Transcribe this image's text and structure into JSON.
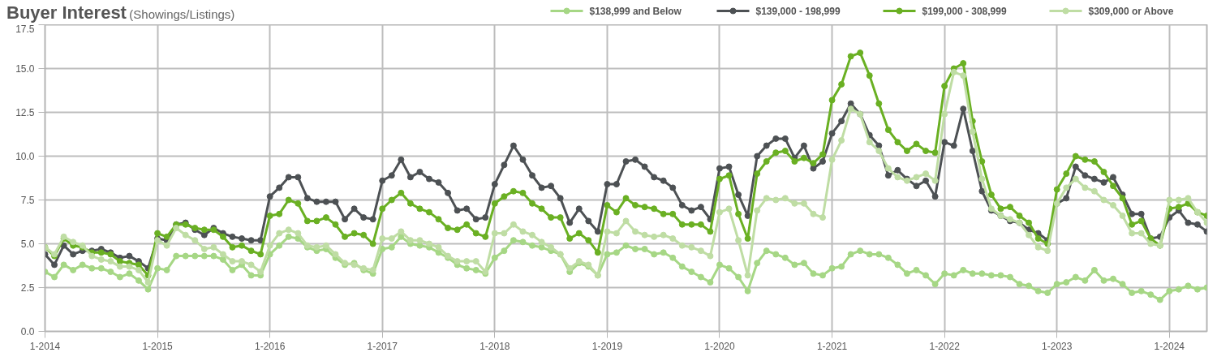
{
  "chart_data": {
    "type": "line",
    "title": "Buyer Interest",
    "subtitle": "(Showings/Listings)",
    "x": [
      "2014-01",
      "2014-02",
      "2014-03",
      "2014-04",
      "2014-05",
      "2014-06",
      "2014-07",
      "2014-08",
      "2014-09",
      "2014-10",
      "2014-11",
      "2014-12",
      "2015-01",
      "2015-02",
      "2015-03",
      "2015-04",
      "2015-05",
      "2015-06",
      "2015-07",
      "2015-08",
      "2015-09",
      "2015-10",
      "2015-11",
      "2015-12",
      "2016-01",
      "2016-02",
      "2016-03",
      "2016-04",
      "2016-05",
      "2016-06",
      "2016-07",
      "2016-08",
      "2016-09",
      "2016-10",
      "2016-11",
      "2016-12",
      "2017-01",
      "2017-02",
      "2017-03",
      "2017-04",
      "2017-05",
      "2017-06",
      "2017-07",
      "2017-08",
      "2017-09",
      "2017-10",
      "2017-11",
      "2017-12",
      "2018-01",
      "2018-02",
      "2018-03",
      "2018-04",
      "2018-05",
      "2018-06",
      "2018-07",
      "2018-08",
      "2018-09",
      "2018-10",
      "2018-11",
      "2018-12",
      "2019-01",
      "2019-02",
      "2019-03",
      "2019-04",
      "2019-05",
      "2019-06",
      "2019-07",
      "2019-08",
      "2019-09",
      "2019-10",
      "2019-11",
      "2019-12",
      "2020-01",
      "2020-02",
      "2020-03",
      "2020-04",
      "2020-05",
      "2020-06",
      "2020-07",
      "2020-08",
      "2020-09",
      "2020-10",
      "2020-11",
      "2020-12",
      "2021-01",
      "2021-02",
      "2021-03",
      "2021-04",
      "2021-05",
      "2021-06",
      "2021-07",
      "2021-08",
      "2021-09",
      "2021-10",
      "2021-11",
      "2021-12",
      "2022-01",
      "2022-02",
      "2022-03",
      "2022-04",
      "2022-05",
      "2022-06",
      "2022-07",
      "2022-08",
      "2022-09",
      "2022-10",
      "2022-11",
      "2022-12",
      "2023-01",
      "2023-02",
      "2023-03",
      "2023-04",
      "2023-05",
      "2023-06",
      "2023-07",
      "2023-08",
      "2023-09",
      "2023-10",
      "2023-11",
      "2023-12",
      "2024-01",
      "2024-02",
      "2024-03",
      "2024-04",
      "2024-05"
    ],
    "series": [
      {
        "name": "$138,999 and Below",
        "color": "#a6d785",
        "values": [
          3.4,
          3.1,
          3.8,
          3.5,
          3.8,
          3.6,
          3.6,
          3.4,
          3.1,
          3.3,
          2.9,
          2.4,
          3.6,
          3.5,
          4.3,
          4.3,
          4.3,
          4.3,
          4.3,
          4.1,
          3.5,
          3.8,
          3.2,
          3.2,
          4.4,
          4.9,
          5.4,
          5.3,
          4.8,
          4.6,
          4.7,
          4.2,
          3.8,
          3.9,
          3.5,
          3.3,
          4.7,
          4.8,
          5.4,
          5.0,
          4.9,
          4.8,
          4.5,
          4.2,
          3.8,
          3.6,
          3.5,
          3.3,
          4.2,
          4.6,
          5.2,
          5.1,
          4.9,
          4.8,
          4.6,
          4.4,
          3.4,
          3.9,
          3.7,
          3.2,
          4.4,
          4.5,
          4.9,
          4.7,
          4.7,
          4.4,
          4.5,
          4.2,
          3.7,
          3.4,
          3.1,
          2.8,
          3.8,
          3.6,
          3.1,
          2.3,
          3.9,
          4.6,
          4.4,
          4.2,
          3.8,
          3.9,
          3.3,
          3.2,
          3.6,
          3.7,
          4.4,
          4.6,
          4.4,
          4.4,
          4.2,
          3.8,
          3.3,
          3.5,
          3.2,
          2.7,
          3.3,
          3.2,
          3.5,
          3.3,
          3.3,
          3.2,
          3.2,
          3.1,
          2.7,
          2.6,
          2.3,
          2.2,
          2.7,
          2.8,
          3.1,
          2.9,
          3.5,
          2.9,
          3.0,
          2.7,
          2.2,
          2.3,
          2.1,
          1.8,
          2.3,
          2.4,
          2.6,
          2.4,
          2.5
        ]
      },
      {
        "name": "$139,000 - 198,999",
        "color": "#4d5154",
        "values": [
          4.4,
          3.8,
          4.9,
          4.4,
          4.6,
          4.6,
          4.7,
          4.5,
          4.2,
          4.3,
          4.0,
          3.6,
          5.3,
          5.2,
          6.1,
          6.2,
          5.8,
          5.5,
          5.9,
          5.6,
          5.4,
          5.3,
          5.2,
          5.2,
          7.7,
          8.2,
          8.8,
          8.8,
          7.6,
          7.4,
          7.4,
          7.4,
          6.4,
          7.0,
          6.5,
          6.4,
          8.6,
          8.9,
          9.8,
          8.8,
          9.1,
          8.7,
          8.5,
          7.9,
          6.9,
          7.0,
          6.4,
          6.5,
          8.4,
          9.5,
          10.6,
          9.8,
          8.9,
          8.2,
          8.3,
          7.6,
          6.2,
          7.0,
          6.3,
          5.7,
          8.4,
          8.4,
          9.7,
          9.8,
          9.4,
          8.8,
          8.6,
          8.2,
          7.2,
          6.9,
          7.1,
          6.4,
          9.3,
          9.4,
          7.8,
          6.6,
          10.0,
          10.6,
          11.0,
          11.0,
          9.9,
          10.6,
          9.3,
          9.7,
          11.3,
          12.0,
          13.0,
          12.4,
          11.2,
          10.6,
          8.9,
          9.2,
          8.7,
          8.3,
          8.6,
          7.7,
          10.8,
          10.6,
          12.7,
          10.3,
          8.0,
          6.9,
          6.6,
          6.3,
          6.2,
          5.8,
          5.6,
          5.2,
          7.3,
          7.6,
          9.4,
          8.9,
          8.7,
          8.5,
          8.8,
          7.8,
          6.7,
          6.7,
          5.3,
          5.4,
          6.5,
          6.9,
          6.2,
          6.1,
          5.7
        ]
      },
      {
        "name": "$199,000 - 308,999",
        "color": "#6ab023",
        "values": [
          4.8,
          4.3,
          5.3,
          4.9,
          4.8,
          4.5,
          4.5,
          4.4,
          4.0,
          3.9,
          3.8,
          3.2,
          5.6,
          5.4,
          6.1,
          6.1,
          5.9,
          5.8,
          5.8,
          5.4,
          4.8,
          4.9,
          4.6,
          4.4,
          6.6,
          6.7,
          7.5,
          7.3,
          6.3,
          6.3,
          6.5,
          6.1,
          5.4,
          5.6,
          5.5,
          5.0,
          7.0,
          7.5,
          7.9,
          7.3,
          7.0,
          6.8,
          6.4,
          5.9,
          5.8,
          6.1,
          5.6,
          5.4,
          7.3,
          7.7,
          8.0,
          7.9,
          7.3,
          7.0,
          6.5,
          6.5,
          5.3,
          5.6,
          5.2,
          4.5,
          7.2,
          6.8,
          7.6,
          7.2,
          7.1,
          7.0,
          6.7,
          6.7,
          6.1,
          6.1,
          6.1,
          5.7,
          8.7,
          8.9,
          6.7,
          5.3,
          9.0,
          9.7,
          10.2,
          10.3,
          9.7,
          9.9,
          9.6,
          10.1,
          13.2,
          14.1,
          15.7,
          15.9,
          14.6,
          13.0,
          11.5,
          10.8,
          10.3,
          10.7,
          10.3,
          10.2,
          14.0,
          15.0,
          15.3,
          12.0,
          9.7,
          7.8,
          7.0,
          7.1,
          6.6,
          6.2,
          5.3,
          5.0,
          8.1,
          9.0,
          10.0,
          9.8,
          9.7,
          9.1,
          8.3,
          7.6,
          6.1,
          6.3,
          5.3,
          4.9,
          7.0,
          7.1,
          7.3,
          6.8,
          6.6
        ]
      },
      {
        "name": "$309,000 or Above",
        "color": "#bfdda4",
        "values": [
          4.8,
          4.4,
          5.4,
          5.1,
          4.9,
          4.3,
          4.1,
          4.0,
          3.7,
          3.7,
          3.5,
          2.8,
          5.2,
          4.9,
          5.9,
          5.5,
          5.2,
          4.7,
          4.8,
          4.4,
          4.0,
          4.0,
          3.8,
          3.4,
          4.9,
          5.6,
          5.8,
          5.6,
          4.9,
          4.8,
          4.9,
          4.4,
          3.9,
          3.8,
          3.6,
          3.5,
          5.3,
          5.3,
          5.7,
          5.2,
          5.2,
          5.0,
          4.8,
          4.3,
          4.0,
          4.0,
          4.0,
          3.4,
          5.6,
          5.6,
          6.1,
          5.7,
          5.5,
          5.1,
          4.8,
          4.4,
          3.6,
          4.0,
          3.8,
          3.2,
          5.7,
          5.6,
          6.3,
          5.7,
          5.5,
          5.4,
          5.5,
          5.3,
          4.9,
          4.8,
          4.6,
          4.3,
          6.8,
          7.0,
          5.2,
          3.2,
          6.9,
          7.6,
          7.5,
          7.6,
          7.3,
          7.3,
          6.7,
          6.5,
          9.8,
          10.9,
          12.7,
          12.4,
          10.8,
          10.3,
          9.3,
          8.8,
          8.6,
          8.8,
          9.0,
          8.6,
          12.4,
          14.8,
          14.6,
          11.4,
          8.7,
          7.0,
          6.6,
          6.4,
          6.2,
          5.5,
          4.8,
          4.6,
          7.3,
          8.2,
          8.7,
          8.2,
          8.0,
          7.5,
          7.2,
          6.6,
          5.6,
          5.6,
          5.0,
          4.9,
          7.5,
          7.5,
          7.6,
          6.8,
          6.2
        ]
      }
    ],
    "xlim": [
      "2014-01",
      "2024-05"
    ],
    "xticks": [
      {
        "value": "2014-01",
        "label": "1-2014"
      },
      {
        "value": "2015-01",
        "label": "1-2015"
      },
      {
        "value": "2016-01",
        "label": "1-2016"
      },
      {
        "value": "2017-01",
        "label": "1-2017"
      },
      {
        "value": "2018-01",
        "label": "1-2018"
      },
      {
        "value": "2019-01",
        "label": "1-2019"
      },
      {
        "value": "2020-01",
        "label": "1-2020"
      },
      {
        "value": "2021-01",
        "label": "1-2021"
      },
      {
        "value": "2022-01",
        "label": "1-2022"
      },
      {
        "value": "2023-01",
        "label": "1-2023"
      },
      {
        "value": "2024-01",
        "label": "1-2024"
      }
    ],
    "ylim": [
      0,
      17.5
    ],
    "yticks": [
      {
        "value": 0,
        "label": "0.0"
      },
      2.5,
      {
        "value": 5,
        "label": "5.0"
      },
      7.5,
      {
        "value": 10,
        "label": "10.0"
      },
      12.5,
      {
        "value": 15,
        "label": "15.0"
      },
      17.5
    ],
    "grid": true,
    "legend": "top right",
    "marker": "circle",
    "line_style": "solid"
  }
}
